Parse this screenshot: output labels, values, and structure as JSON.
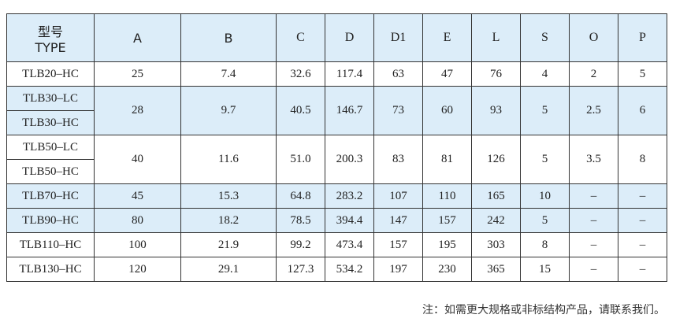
{
  "header": {
    "type_cn": "型号",
    "type_en": "TYPE",
    "cols": [
      "A",
      "B",
      "C",
      "D",
      "D1",
      "E",
      "L",
      "S",
      "O",
      "P"
    ]
  },
  "rows": [
    {
      "types": [
        "TLB20–HC"
      ],
      "values": [
        "25",
        "7.4",
        "32.6",
        "117.4",
        "63",
        "47",
        "76",
        "4",
        "2",
        "5"
      ],
      "blue": false
    },
    {
      "types": [
        "TLB30–LC",
        "TLB30–HC"
      ],
      "values": [
        "28",
        "9.7",
        "40.5",
        "146.7",
        "73",
        "60",
        "93",
        "5",
        "2.5",
        "6"
      ],
      "blue": true
    },
    {
      "types": [
        "TLB50–LC",
        "TLB50–HC"
      ],
      "values": [
        "40",
        "11.6",
        "51.0",
        "200.3",
        "83",
        "81",
        "126",
        "5",
        "3.5",
        "8"
      ],
      "blue": false
    },
    {
      "types": [
        "TLB70–HC"
      ],
      "values": [
        "45",
        "15.3",
        "64.8",
        "283.2",
        "107",
        "110",
        "165",
        "10",
        "–",
        "–"
      ],
      "blue": true
    },
    {
      "types": [
        "TLB90–HC"
      ],
      "values": [
        "80",
        "18.2",
        "78.5",
        "394.4",
        "147",
        "157",
        "242",
        "5",
        "–",
        "–"
      ],
      "blue": true
    },
    {
      "types": [
        "TLB110–HC"
      ],
      "values": [
        "100",
        "21.9",
        "99.2",
        "473.4",
        "157",
        "195",
        "303",
        "8",
        "–",
        "–"
      ],
      "blue": false
    },
    {
      "types": [
        "TLB130–HC"
      ],
      "values": [
        "120",
        "29.1",
        "127.3",
        "534.2",
        "197",
        "230",
        "365",
        "15",
        "–",
        "–"
      ],
      "blue": false
    }
  ],
  "note": "注：如需更大规格或非标结构产品，请联系我们。",
  "colors": {
    "header_bg": "#dcedf9",
    "border": "#333333"
  }
}
